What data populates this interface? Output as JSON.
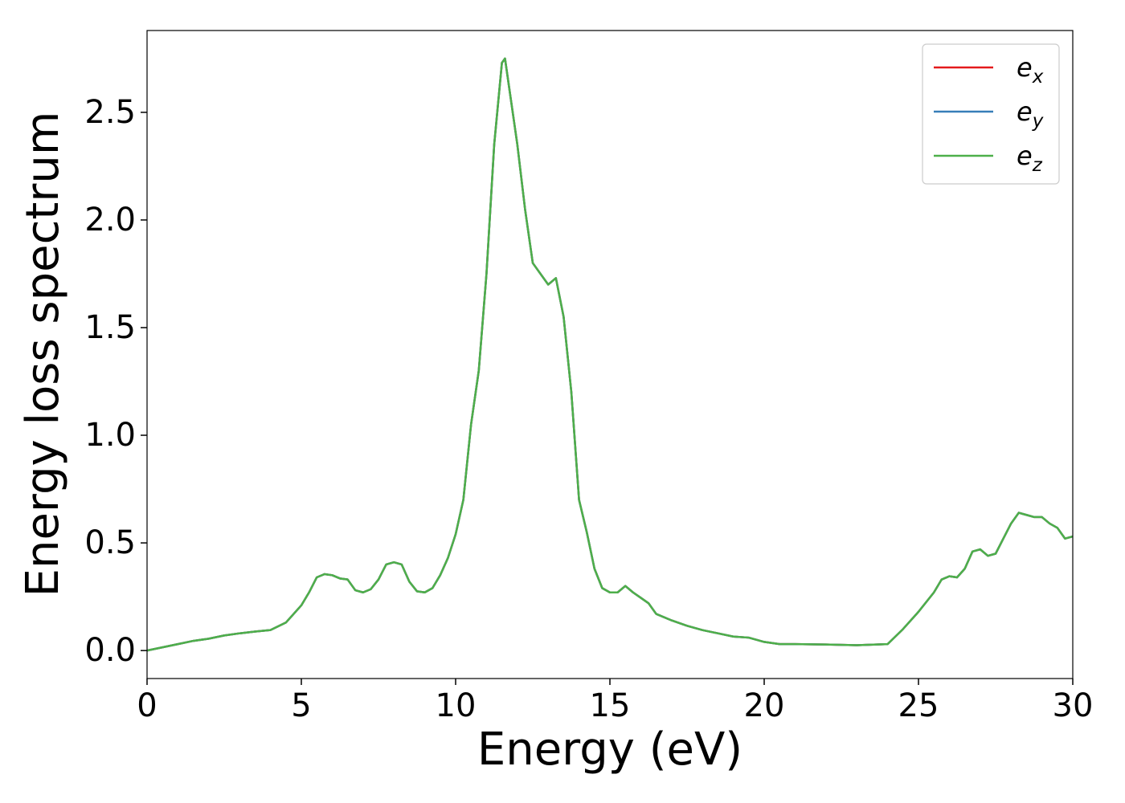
{
  "chart_data": {
    "type": "line",
    "xlabel": "Energy (eV)",
    "ylabel": "Energy loss spectrum",
    "x": [
      0,
      0.5,
      1,
      1.5,
      2,
      2.5,
      3,
      3.5,
      4,
      4.5,
      5,
      5.25,
      5.5,
      5.75,
      6,
      6.25,
      6.5,
      6.75,
      7,
      7.25,
      7.5,
      7.75,
      8,
      8.25,
      8.5,
      8.75,
      9,
      9.25,
      9.5,
      9.75,
      10,
      10.25,
      10.5,
      10.75,
      11,
      11.25,
      11.5,
      11.6,
      11.75,
      12,
      12.25,
      12.5,
      12.75,
      13,
      13.25,
      13.5,
      13.75,
      14,
      14.25,
      14.5,
      14.75,
      15,
      15.25,
      15.5,
      15.75,
      16,
      16.25,
      16.5,
      17,
      17.5,
      18,
      18.5,
      19,
      19.5,
      20,
      20.5,
      21,
      22,
      23,
      24,
      24.5,
      25,
      25.5,
      25.75,
      26,
      26.25,
      26.5,
      26.75,
      27,
      27.25,
      27.5,
      27.75,
      28,
      28.25,
      28.5,
      28.75,
      29,
      29.25,
      29.5,
      29.75,
      30
    ],
    "series": [
      {
        "name": "e_x",
        "color": "#e41a1c",
        "values": [
          0,
          0.015,
          0.03,
          0.045,
          0.055,
          0.07,
          0.08,
          0.088,
          0.095,
          0.13,
          0.21,
          0.27,
          0.34,
          0.355,
          0.35,
          0.335,
          0.33,
          0.28,
          0.27,
          0.285,
          0.33,
          0.4,
          0.41,
          0.4,
          0.32,
          0.275,
          0.27,
          0.29,
          0.35,
          0.43,
          0.54,
          0.7,
          1.05,
          1.3,
          1.75,
          2.35,
          2.73,
          2.75,
          2.6,
          2.35,
          2.05,
          1.8,
          1.75,
          1.7,
          1.73,
          1.55,
          1.2,
          0.7,
          0.55,
          0.38,
          0.29,
          0.27,
          0.27,
          0.3,
          0.27,
          0.245,
          0.22,
          0.17,
          0.14,
          0.115,
          0.095,
          0.08,
          0.065,
          0.06,
          0.04,
          0.03,
          0.03,
          0.028,
          0.025,
          0.03,
          0.1,
          0.18,
          0.27,
          0.33,
          0.345,
          0.34,
          0.38,
          0.46,
          0.47,
          0.44,
          0.45,
          0.52,
          0.59,
          0.64,
          0.63,
          0.62,
          0.62,
          0.59,
          0.57,
          0.52,
          0.53
        ]
      },
      {
        "name": "e_y",
        "color": "#377eb8",
        "values": [
          0,
          0.015,
          0.03,
          0.045,
          0.055,
          0.07,
          0.08,
          0.088,
          0.095,
          0.13,
          0.21,
          0.27,
          0.34,
          0.355,
          0.35,
          0.335,
          0.33,
          0.28,
          0.27,
          0.285,
          0.33,
          0.4,
          0.41,
          0.4,
          0.32,
          0.275,
          0.27,
          0.29,
          0.35,
          0.43,
          0.54,
          0.7,
          1.05,
          1.3,
          1.75,
          2.35,
          2.73,
          2.75,
          2.6,
          2.35,
          2.05,
          1.8,
          1.75,
          1.7,
          1.73,
          1.55,
          1.2,
          0.7,
          0.55,
          0.38,
          0.29,
          0.27,
          0.27,
          0.3,
          0.27,
          0.245,
          0.22,
          0.17,
          0.14,
          0.115,
          0.095,
          0.08,
          0.065,
          0.06,
          0.04,
          0.03,
          0.03,
          0.028,
          0.025,
          0.03,
          0.1,
          0.18,
          0.27,
          0.33,
          0.345,
          0.34,
          0.38,
          0.46,
          0.47,
          0.44,
          0.45,
          0.52,
          0.59,
          0.64,
          0.63,
          0.62,
          0.62,
          0.59,
          0.57,
          0.52,
          0.53
        ]
      },
      {
        "name": "e_z",
        "color": "#4daf4a",
        "values": [
          0,
          0.015,
          0.03,
          0.045,
          0.055,
          0.07,
          0.08,
          0.088,
          0.095,
          0.13,
          0.21,
          0.27,
          0.34,
          0.355,
          0.35,
          0.335,
          0.33,
          0.28,
          0.27,
          0.285,
          0.33,
          0.4,
          0.41,
          0.4,
          0.32,
          0.275,
          0.27,
          0.29,
          0.35,
          0.43,
          0.54,
          0.7,
          1.05,
          1.3,
          1.75,
          2.35,
          2.73,
          2.75,
          2.6,
          2.35,
          2.05,
          1.8,
          1.75,
          1.7,
          1.73,
          1.55,
          1.2,
          0.7,
          0.55,
          0.38,
          0.29,
          0.27,
          0.27,
          0.3,
          0.27,
          0.245,
          0.22,
          0.17,
          0.14,
          0.115,
          0.095,
          0.08,
          0.065,
          0.06,
          0.04,
          0.03,
          0.03,
          0.028,
          0.025,
          0.03,
          0.1,
          0.18,
          0.27,
          0.33,
          0.345,
          0.34,
          0.38,
          0.46,
          0.47,
          0.44,
          0.45,
          0.52,
          0.59,
          0.64,
          0.63,
          0.62,
          0.62,
          0.59,
          0.57,
          0.52,
          0.53
        ]
      }
    ],
    "xlim": [
      0,
      30
    ],
    "xticks": [
      0,
      5,
      10,
      15,
      20,
      25,
      30
    ],
    "ylim": [
      -0.13,
      2.88
    ],
    "yticks": [
      {
        "value": 0,
        "label": "0.0"
      },
      0.5,
      {
        "value": 1,
        "label": "1.0"
      },
      1.5,
      {
        "value": 2,
        "label": "2.0"
      },
      2.5
    ],
    "legend": "upper right",
    "grid": false
  }
}
